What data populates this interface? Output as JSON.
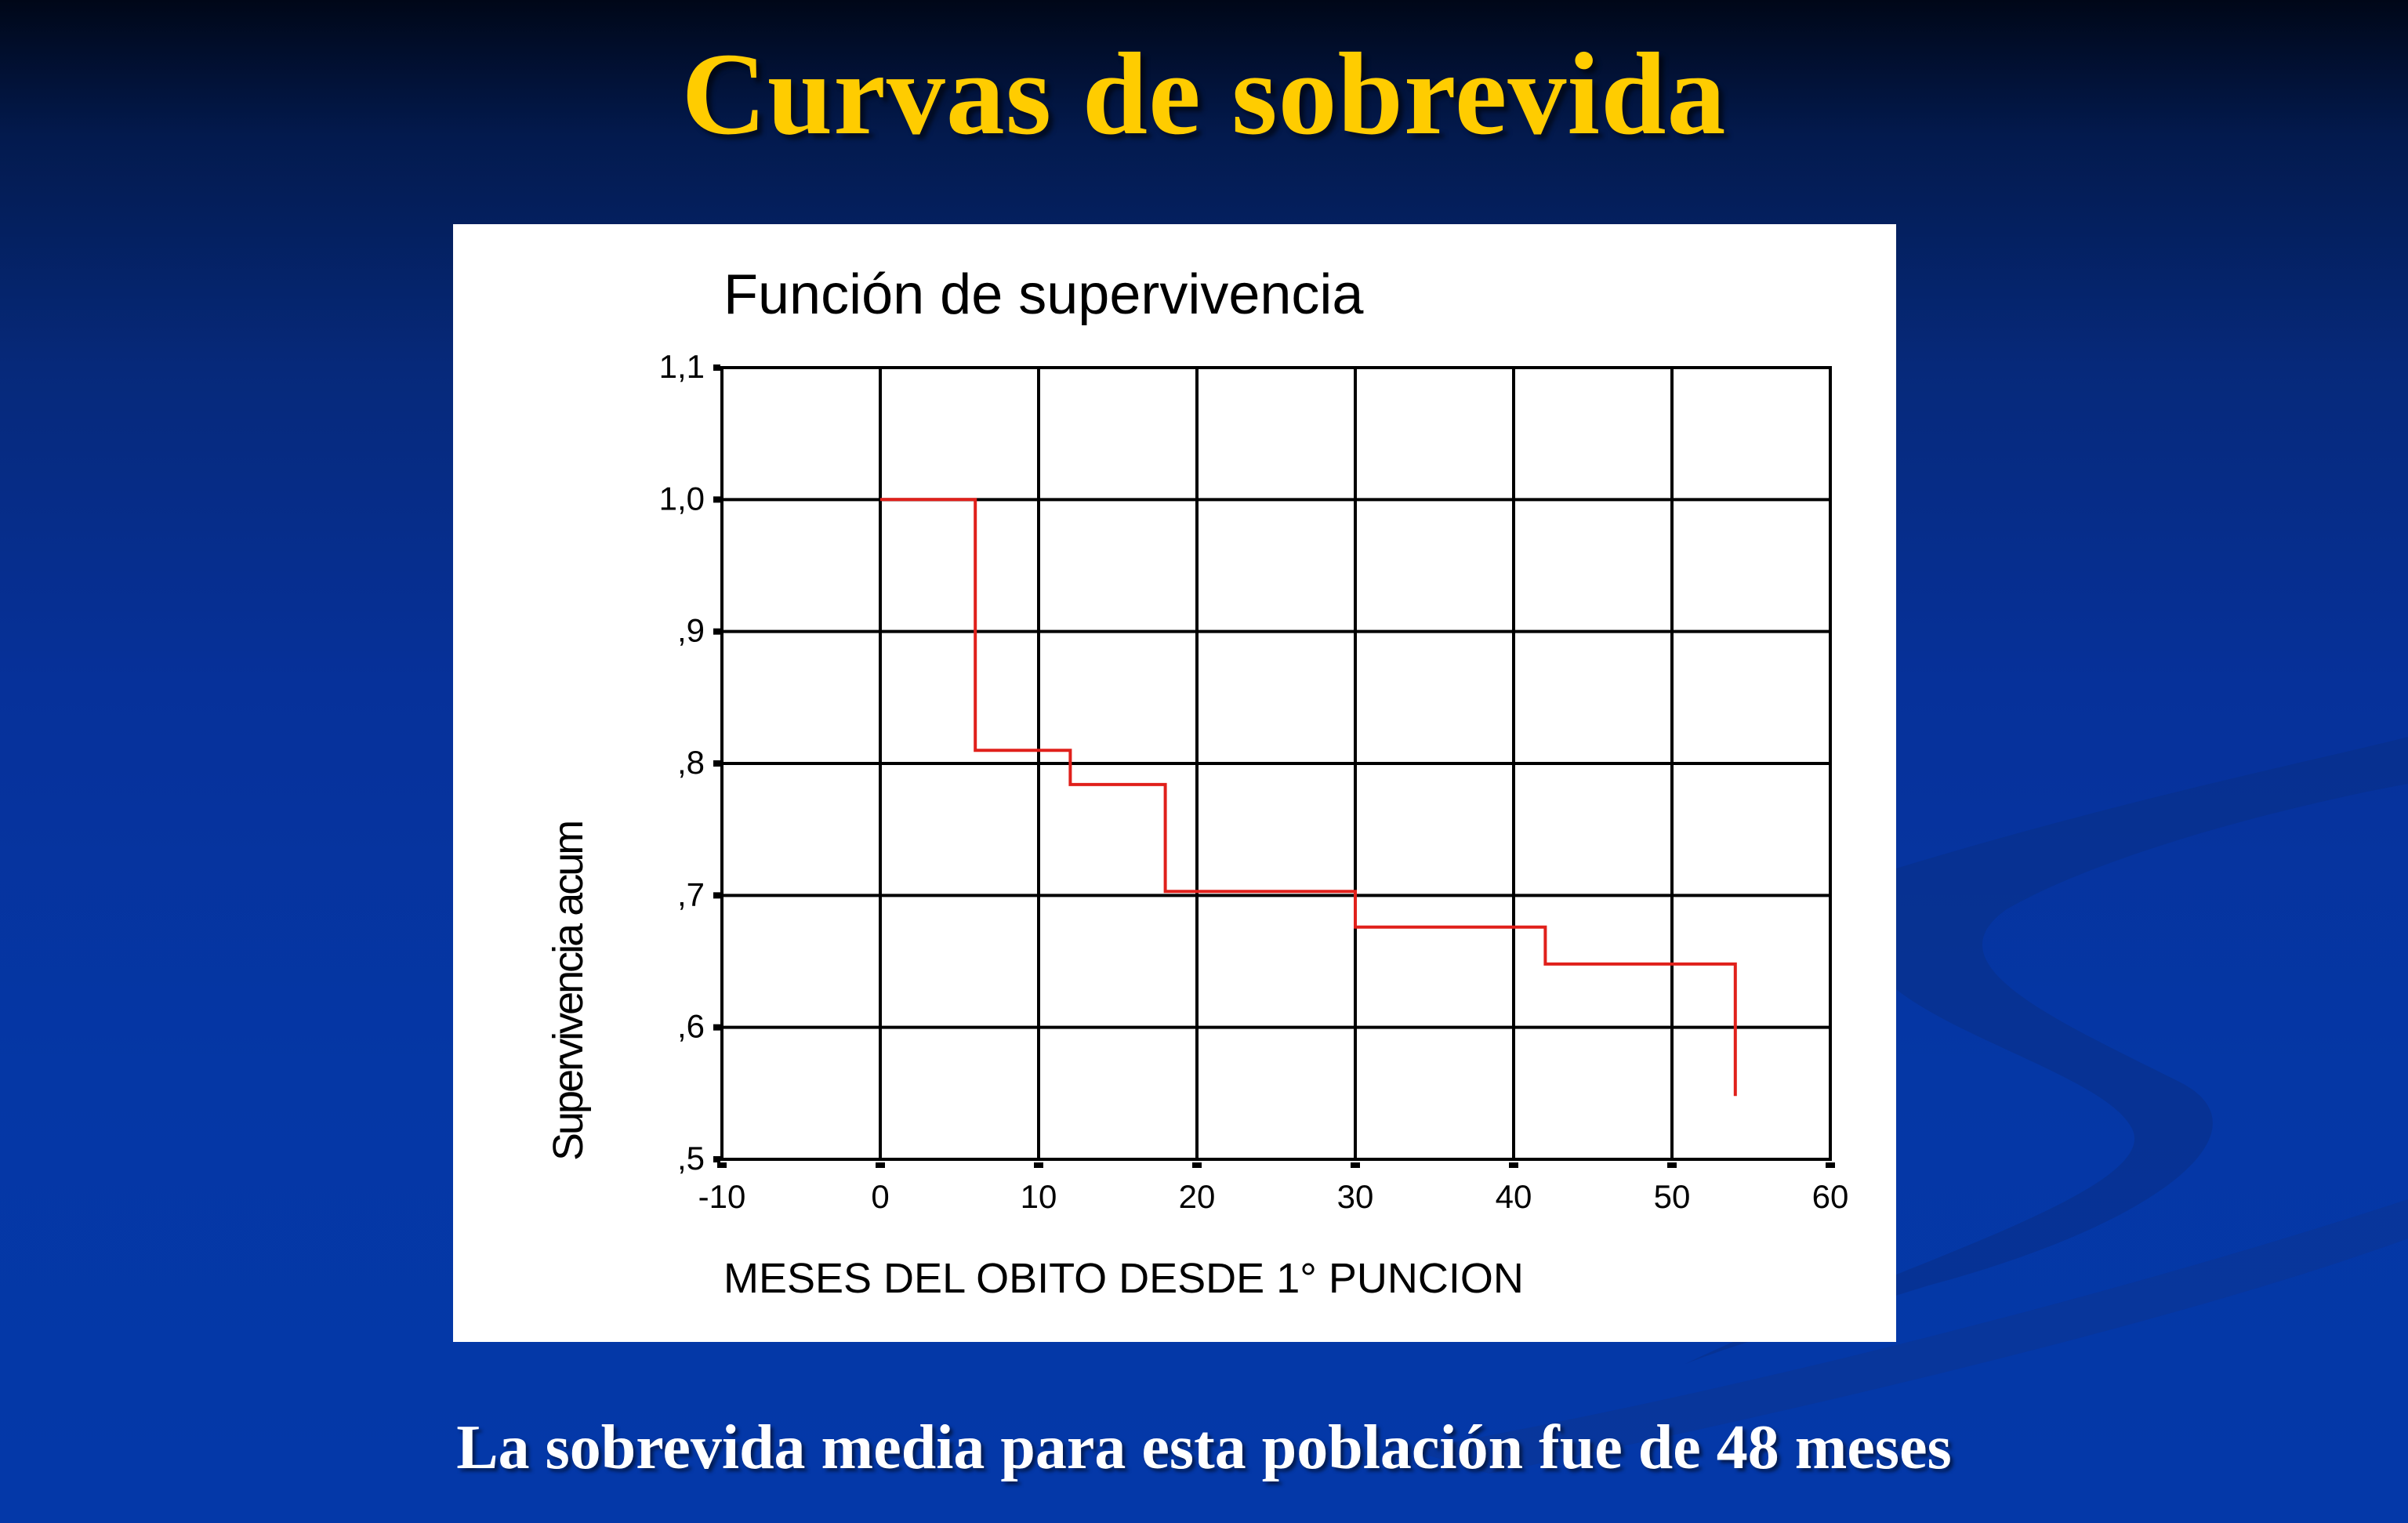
{
  "slide": {
    "title": "Curvas de sobrevida",
    "footer": "La sobrevida media para esta población fue de 48 meses",
    "title_color": "#ffcc00",
    "background_color": "#0537a5"
  },
  "chart_data": {
    "type": "line",
    "step": true,
    "title": "Función de supervivencia",
    "xlabel": "MESES DEL OBITO DESDE 1° PUNCION",
    "ylabel": "Supervivencia acum",
    "xlim": [
      -10,
      60
    ],
    "ylim": [
      0.5,
      1.1
    ],
    "grid": true,
    "x_ticks": [
      -10,
      0,
      10,
      20,
      30,
      40,
      50,
      60
    ],
    "x_tick_labels": [
      "-10",
      "0",
      "10",
      "20",
      "30",
      "40",
      "50",
      "60"
    ],
    "y_ticks": [
      0.5,
      0.6,
      0.7,
      0.8,
      0.9,
      1.0,
      1.1
    ],
    "y_tick_labels": [
      ",5",
      ",6",
      ",7",
      ",8",
      ",9",
      "1,0",
      "1,1"
    ],
    "series": [
      {
        "color": "#e0201b",
        "x": [
          0,
          6,
          6,
          12,
          12,
          18,
          18,
          30,
          30,
          42,
          42,
          54,
          54
        ],
        "y": [
          1.0,
          1.0,
          0.81,
          0.81,
          0.784,
          0.784,
          0.703,
          0.703,
          0.676,
          0.676,
          0.648,
          0.648,
          0.548
        ]
      }
    ]
  }
}
